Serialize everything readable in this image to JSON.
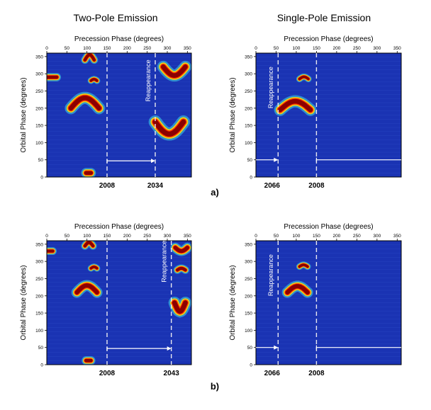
{
  "column_titles": {
    "left": "Two-Pole Emission",
    "right": "Single-Pole Emission"
  },
  "row_labels": {
    "a": "a)",
    "b": "b)"
  },
  "colors": {
    "background": "#1a33b3",
    "frame": "#000000",
    "markers": "#e8e8f0",
    "hot": "#8b0000"
  },
  "chart_data": [
    {
      "id": "a-left",
      "type": "heatmap",
      "xlabel": "Precession Phase (degrees)",
      "ylabel": "Orbital Phase (degrees)",
      "xlim": [
        0,
        360
      ],
      "ylim": [
        0,
        360
      ],
      "xticks": [
        "0",
        "50",
        "100",
        "150",
        "200",
        "250",
        "300",
        "350"
      ],
      "yticks": [
        "0",
        "50",
        "100",
        "150",
        "200",
        "250",
        "300",
        "350"
      ],
      "marker_lines": [
        150,
        270
      ],
      "year_labels": [
        {
          "x": 150,
          "text": "2008"
        },
        {
          "x": 270,
          "text": "2034"
        }
      ],
      "arrow": {
        "from": 150,
        "to": 270,
        "y": 47
      },
      "annotation": {
        "text": "Reappearance",
        "x": 258,
        "y": 280
      },
      "blobs": [
        {
          "x0": 60,
          "x1": 130,
          "yc": 200,
          "amp": 30,
          "thick": 22,
          "dir": 1
        },
        {
          "x0": 270,
          "x1": 340,
          "yc": 160,
          "amp": 35,
          "thick": 24,
          "dir": -1
        },
        {
          "x0": 290,
          "x1": 345,
          "yc": 320,
          "amp": -25,
          "thick": 22,
          "dir": 1
        },
        {
          "x0": 110,
          "x1": 125,
          "yc": 280,
          "amp": 4,
          "thick": 12,
          "dir": 1
        },
        {
          "x0": 0,
          "x1": 25,
          "yc": 290,
          "amp": 0,
          "thick": 15,
          "dir": 1
        },
        {
          "x0": 95,
          "x1": 118,
          "yc": 340,
          "amp": 15,
          "thick": 14,
          "dir": 1
        },
        {
          "x0": 98,
          "x1": 110,
          "yc": 12,
          "amp": 0,
          "thick": 18,
          "dir": 1
        }
      ]
    },
    {
      "id": "a-right",
      "type": "heatmap",
      "xlabel": "Precession Phase (degrees)",
      "ylabel": "Orbital Phase (degrees)",
      "xlim": [
        0,
        360
      ],
      "ylim": [
        0,
        360
      ],
      "xticks": [
        "0",
        "50",
        "100",
        "150",
        "200",
        "250",
        "300",
        "350"
      ],
      "yticks": [
        "0",
        "50",
        "100",
        "150",
        "200",
        "250",
        "300",
        "350"
      ],
      "marker_lines": [
        55,
        150
      ],
      "year_labels": [
        {
          "x": 40,
          "text": "2066"
        },
        {
          "x": 150,
          "text": "2008"
        }
      ],
      "arrow": {
        "from": 0,
        "to": 55,
        "y": 50,
        "tail_from": 150,
        "tail_to": 360
      },
      "annotation": {
        "text": "Reappearance",
        "x": 42,
        "y": 260
      },
      "blobs": [
        {
          "x0": 60,
          "x1": 135,
          "yc": 195,
          "amp": 25,
          "thick": 22,
          "dir": 1
        },
        {
          "x0": 108,
          "x1": 130,
          "yc": 285,
          "amp": 6,
          "thick": 12,
          "dir": 1
        }
      ]
    },
    {
      "id": "b-left",
      "type": "heatmap",
      "xlabel": "Precession Phase (degrees)",
      "ylabel": "Orbital Phase (degrees)",
      "xlim": [
        0,
        360
      ],
      "ylim": [
        0,
        360
      ],
      "xticks": [
        "0",
        "50",
        "100",
        "150",
        "200",
        "250",
        "300",
        "350"
      ],
      "yticks": [
        "0",
        "50",
        "100",
        "150",
        "200",
        "250",
        "300",
        "350"
      ],
      "marker_lines": [
        150,
        310
      ],
      "year_labels": [
        {
          "x": 150,
          "text": "2008"
        },
        {
          "x": 310,
          "text": "2043"
        }
      ],
      "arrow": {
        "from": 150,
        "to": 310,
        "y": 47
      },
      "annotation": {
        "text": "Reappearance",
        "x": 297,
        "y": 300
      },
      "blobs": [
        {
          "x0": 75,
          "x1": 125,
          "yc": 210,
          "amp": 20,
          "thick": 20,
          "dir": 1
        },
        {
          "x0": 318,
          "x1": 345,
          "yc": 180,
          "amp": 25,
          "thick": 22,
          "dir": -1
        },
        {
          "x0": 320,
          "x1": 350,
          "yc": 340,
          "amp": -10,
          "thick": 18,
          "dir": 1
        },
        {
          "x0": 325,
          "x1": 345,
          "yc": 275,
          "amp": 5,
          "thick": 14,
          "dir": 1
        },
        {
          "x0": 110,
          "x1": 125,
          "yc": 280,
          "amp": 4,
          "thick": 12,
          "dir": 1
        },
        {
          "x0": 95,
          "x1": 115,
          "yc": 345,
          "amp": 10,
          "thick": 14,
          "dir": 1
        },
        {
          "x0": 98,
          "x1": 110,
          "yc": 12,
          "amp": 0,
          "thick": 16,
          "dir": 1
        },
        {
          "x0": 0,
          "x1": 15,
          "yc": 330,
          "amp": 0,
          "thick": 14,
          "dir": 1
        }
      ]
    },
    {
      "id": "b-right",
      "type": "heatmap",
      "xlabel": "Precession Phase (degrees)",
      "ylabel": "Orbital Phase (degrees)",
      "xlim": [
        0,
        360
      ],
      "ylim": [
        0,
        360
      ],
      "xticks": [
        "0",
        "50",
        "100",
        "150",
        "200",
        "250",
        "300",
        "350"
      ],
      "yticks": [
        "0",
        "50",
        "100",
        "150",
        "200",
        "250",
        "300",
        "350"
      ],
      "marker_lines": [
        55,
        150
      ],
      "year_labels": [
        {
          "x": 40,
          "text": "2066"
        },
        {
          "x": 150,
          "text": "2008"
        }
      ],
      "arrow": {
        "from": 0,
        "to": 55,
        "y": 50,
        "tail_from": 150,
        "tail_to": 360
      },
      "annotation": {
        "text": "Reappearance",
        "x": 42,
        "y": 260
      },
      "blobs": [
        {
          "x0": 78,
          "x1": 128,
          "yc": 210,
          "amp": 18,
          "thick": 20,
          "dir": 1
        },
        {
          "x0": 108,
          "x1": 128,
          "yc": 285,
          "amp": 5,
          "thick": 12,
          "dir": 1
        }
      ]
    }
  ]
}
